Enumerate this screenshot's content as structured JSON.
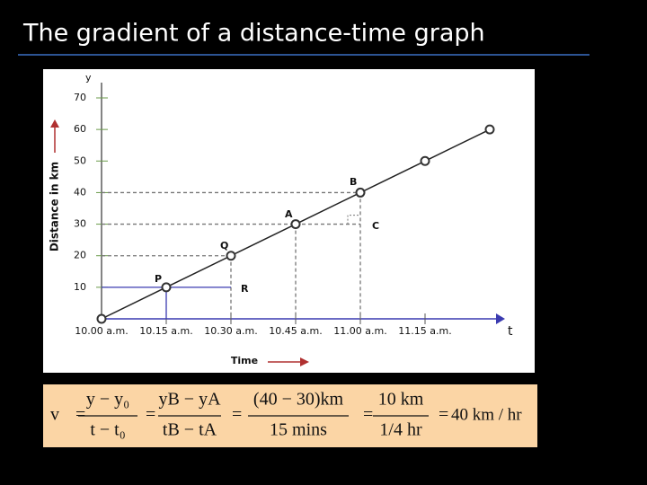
{
  "slide": {
    "title": "The gradient of a distance-time graph"
  },
  "chart_data": {
    "type": "line",
    "x_label": "Time",
    "y_label": "Distance in km",
    "y_axis_name": "y",
    "x_axis_name": "t",
    "categories": [
      "10.00 a.m.",
      "10.15 a.m.",
      "10.30 a.m.",
      "10.45 a.m.",
      "11.00 a.m.",
      "11.15 a.m.",
      null
    ],
    "values": [
      0,
      10,
      20,
      30,
      40,
      50,
      60
    ],
    "color": "#222222",
    "ylim": [
      0,
      70
    ],
    "yticks": [
      10,
      20,
      30,
      40,
      50,
      60,
      70
    ],
    "grid": false,
    "annotations": [
      "P",
      "Q",
      "A",
      "B",
      "R",
      "C"
    ]
  },
  "formula": {
    "lhs": "v",
    "equals": "=",
    "fractions": [
      {
        "num": "y − y₀",
        "den": "t − t₀"
      },
      {
        "num": "yB − yA",
        "den": "tB − tA"
      },
      {
        "num": "(40 − 30)km",
        "den": "15 mins"
      },
      {
        "num": "10 km",
        "den": "1/4 hr"
      }
    ],
    "result": "40 km / hr"
  }
}
